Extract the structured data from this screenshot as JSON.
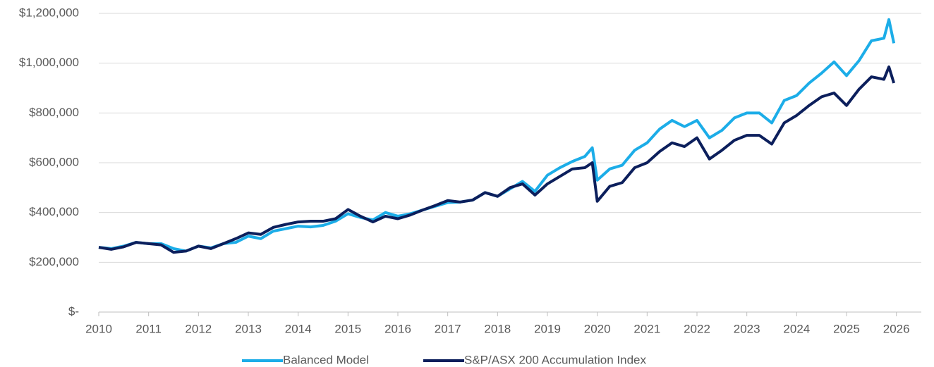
{
  "chart_data": {
    "type": "line",
    "x": [
      2010.0,
      2010.25,
      2010.5,
      2010.75,
      2011.0,
      2011.25,
      2011.5,
      2011.75,
      2012.0,
      2012.25,
      2012.5,
      2012.75,
      2013.0,
      2013.25,
      2013.5,
      2013.75,
      2014.0,
      2014.25,
      2014.5,
      2014.75,
      2015.0,
      2015.25,
      2015.5,
      2015.75,
      2016.0,
      2016.25,
      2016.5,
      2016.75,
      2017.0,
      2017.25,
      2017.5,
      2017.75,
      2018.0,
      2018.25,
      2018.5,
      2018.75,
      2019.0,
      2019.25,
      2019.5,
      2019.75,
      2019.9,
      2020.0,
      2020.25,
      2020.5,
      2020.75,
      2021.0,
      2021.25,
      2021.5,
      2021.75,
      2022.0,
      2022.25,
      2022.5,
      2022.75,
      2023.0,
      2023.25,
      2023.5,
      2023.75,
      2024.0,
      2024.25,
      2024.5,
      2024.75,
      2025.0,
      2025.25,
      2025.5,
      2025.75,
      2025.85,
      2025.95
    ],
    "series": [
      {
        "name": "Balanced Model",
        "color": "#1cade8",
        "values": [
          260000,
          255000,
          265000,
          280000,
          275000,
          275000,
          255000,
          245000,
          265000,
          258000,
          275000,
          280000,
          305000,
          295000,
          325000,
          335000,
          345000,
          342000,
          348000,
          365000,
          395000,
          380000,
          370000,
          400000,
          385000,
          395000,
          410000,
          425000,
          440000,
          442000,
          450000,
          480000,
          465000,
          495000,
          525000,
          485000,
          550000,
          580000,
          605000,
          625000,
          660000,
          530000,
          575000,
          590000,
          650000,
          680000,
          735000,
          770000,
          745000,
          770000,
          700000,
          730000,
          780000,
          800000,
          800000,
          760000,
          850000,
          870000,
          920000,
          960000,
          1005000,
          950000,
          1010000,
          1090000,
          1100000,
          1175000,
          1080000
        ]
      },
      {
        "name": "S&P/ASX 200 Accumulation Index",
        "color": "#0c1f5c",
        "values": [
          260000,
          252000,
          262000,
          280000,
          275000,
          270000,
          240000,
          245000,
          265000,
          255000,
          275000,
          295000,
          318000,
          312000,
          340000,
          352000,
          362000,
          365000,
          365000,
          375000,
          412000,
          385000,
          362000,
          385000,
          375000,
          390000,
          410000,
          428000,
          448000,
          442000,
          450000,
          480000,
          465000,
          500000,
          515000,
          470000,
          515000,
          545000,
          575000,
          580000,
          600000,
          445000,
          505000,
          520000,
          580000,
          600000,
          645000,
          680000,
          665000,
          700000,
          615000,
          650000,
          690000,
          710000,
          710000,
          675000,
          760000,
          790000,
          830000,
          865000,
          880000,
          830000,
          895000,
          945000,
          935000,
          985000,
          920000
        ]
      }
    ],
    "xlim": [
      2010,
      2026.5
    ],
    "xticks": [
      2010,
      2011,
      2012,
      2013,
      2014,
      2015,
      2016,
      2017,
      2018,
      2019,
      2020,
      2021,
      2022,
      2023,
      2024,
      2025,
      2026
    ],
    "ylim": [
      0,
      1200000
    ],
    "yticks": [
      {
        "value": 0,
        "label": "$-"
      },
      {
        "value": 200000,
        "label": "$200,000"
      },
      {
        "value": 400000,
        "label": "$400,000"
      },
      {
        "value": 600000,
        "label": "$600,000"
      },
      {
        "value": 800000,
        "label": "$800,000"
      },
      {
        "value": 1000000,
        "label": "$1,000,000"
      },
      {
        "value": 1200000,
        "label": "$1,200,000"
      }
    ],
    "grid": true,
    "legend": "bottom"
  }
}
